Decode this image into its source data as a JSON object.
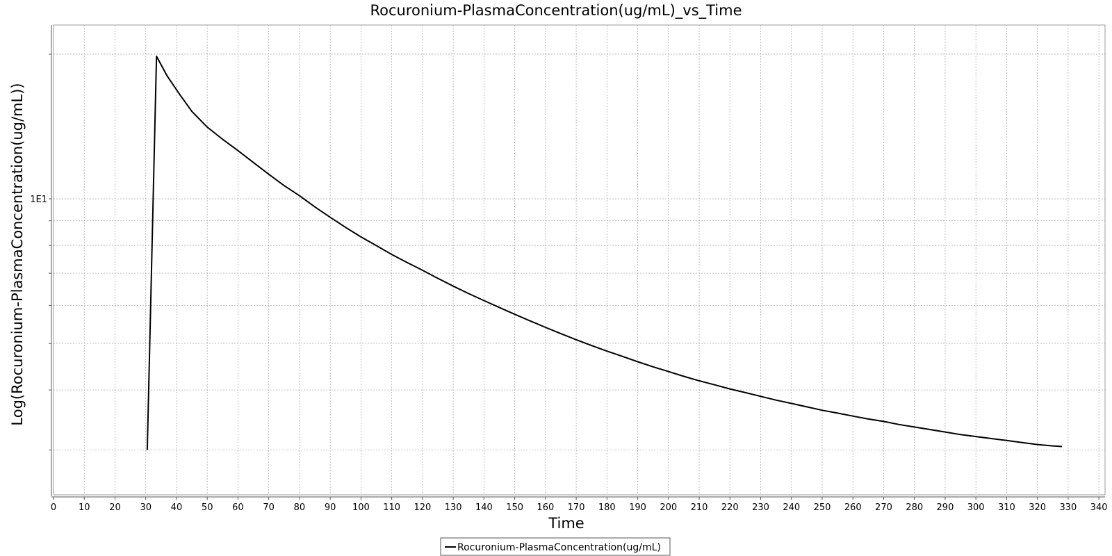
{
  "chart_data": {
    "type": "line",
    "title": "Rocuronium-PlasmaConcentration(ug/mL)_vs_Time",
    "xlabel": "Time",
    "ylabel": "Log(Rocuronium-PlasmaConcentration(ug/mL))",
    "x_scale": "linear",
    "y_scale": "log",
    "xlim": [
      0,
      342
    ],
    "ylim": [
      2.42,
      23.0
    ],
    "x_ticks": [
      0,
      10,
      20,
      30,
      40,
      50,
      60,
      70,
      80,
      90,
      100,
      110,
      120,
      130,
      140,
      150,
      160,
      170,
      180,
      190,
      200,
      210,
      220,
      230,
      240,
      250,
      260,
      270,
      280,
      290,
      300,
      310,
      320,
      330,
      340
    ],
    "x_tick_labels": [
      "0",
      "10",
      "20",
      "30",
      "40",
      "50",
      "60",
      "70",
      "80",
      "90",
      "100",
      "110",
      "120",
      "130",
      "140",
      "150",
      "160",
      "170",
      "180",
      "190",
      "200",
      "210",
      "220",
      "230",
      "240",
      "250",
      "260",
      "270",
      "280",
      "290",
      "300",
      "310",
      "320",
      "330",
      "340"
    ],
    "y_gridlines": [
      3,
      4,
      5,
      6,
      7,
      8,
      9,
      10,
      20
    ],
    "y_tick_labels": [
      {
        "value": 10,
        "label": "1E1"
      }
    ],
    "grid": true,
    "legend_position": "bottom-center",
    "series": [
      {
        "name": "Rocuronium-PlasmaConcentration(ug/mL)",
        "color": "#000000",
        "x": [
          30.5,
          33.5,
          37,
          41,
          45,
          50,
          55,
          60,
          65,
          70,
          75,
          80,
          85,
          90,
          95,
          100,
          105,
          110,
          115,
          120,
          125,
          130,
          135,
          140,
          145,
          150,
          155,
          160,
          165,
          170,
          175,
          180,
          185,
          190,
          195,
          200,
          205,
          210,
          215,
          220,
          225,
          230,
          235,
          240,
          245,
          250,
          255,
          260,
          265,
          270,
          275,
          280,
          285,
          290,
          295,
          300,
          305,
          310,
          315,
          320,
          325,
          328
        ],
        "y": [
          3.0,
          19.8,
          18.0,
          16.5,
          15.2,
          14.1,
          13.3,
          12.6,
          11.9,
          11.25,
          10.65,
          10.15,
          9.62,
          9.15,
          8.72,
          8.33,
          7.99,
          7.66,
          7.37,
          7.1,
          6.83,
          6.58,
          6.35,
          6.14,
          5.94,
          5.75,
          5.57,
          5.4,
          5.24,
          5.09,
          4.95,
          4.82,
          4.7,
          4.58,
          4.47,
          4.37,
          4.27,
          4.18,
          4.1,
          4.02,
          3.95,
          3.88,
          3.81,
          3.75,
          3.69,
          3.63,
          3.58,
          3.53,
          3.48,
          3.44,
          3.39,
          3.35,
          3.31,
          3.27,
          3.23,
          3.2,
          3.17,
          3.14,
          3.11,
          3.08,
          3.06,
          3.05
        ]
      }
    ]
  }
}
